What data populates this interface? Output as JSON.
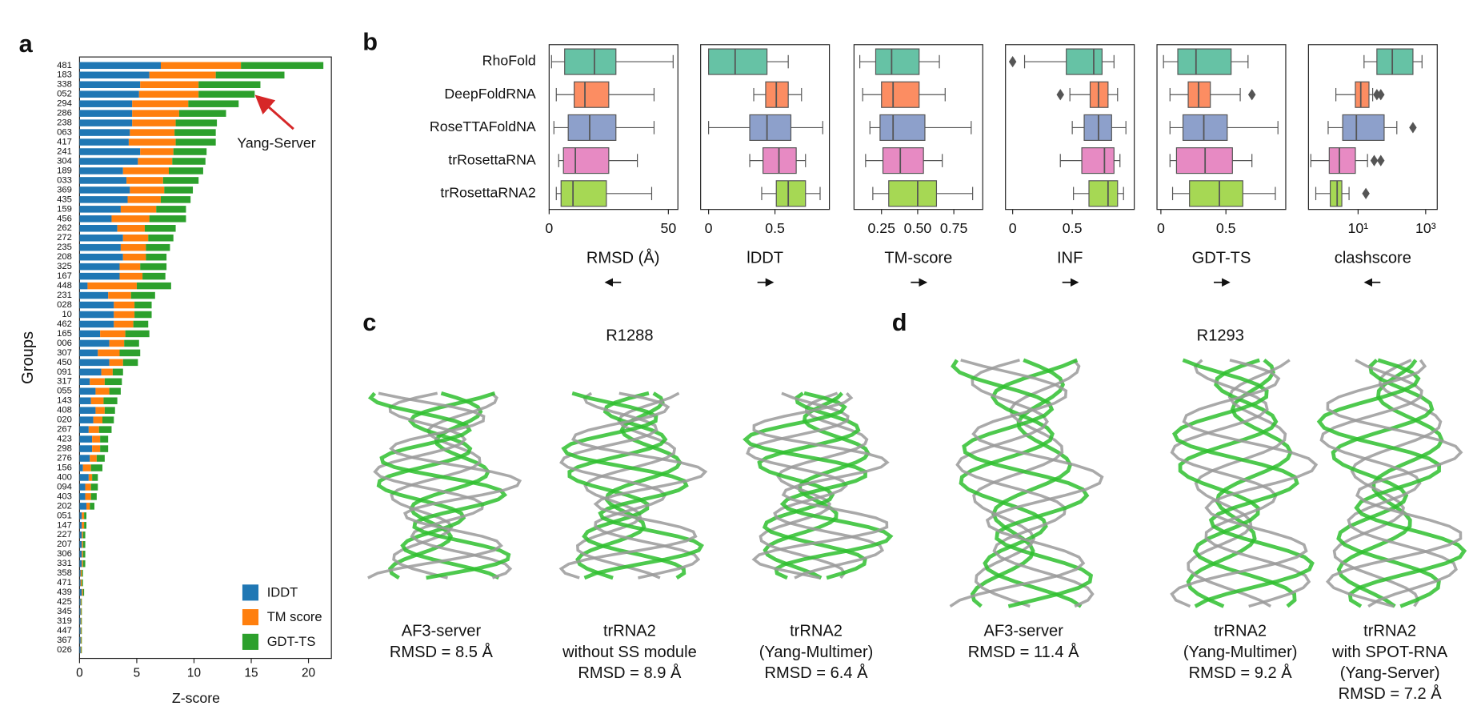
{
  "chart_data": [
    {
      "type": "stacked-barh",
      "panel_label": "a",
      "ylabel": "Groups",
      "xlabel": "Z-score",
      "categories": [
        "481",
        "183",
        "338",
        "052",
        "294",
        "286",
        "238",
        "063",
        "417",
        "241",
        "304",
        "189",
        "033",
        "369",
        "435",
        "159",
        "456",
        "262",
        "272",
        "235",
        "208",
        "325",
        "167",
        "448",
        "231",
        "028",
        "10",
        "462",
        "165",
        "006",
        "307",
        "450",
        "091",
        "317",
        "055",
        "143",
        "408",
        "020",
        "267",
        "423",
        "298",
        "276",
        "156",
        "400",
        "094",
        "403",
        "202",
        "051",
        "147",
        "227",
        "207",
        "306",
        "331",
        "358",
        "471",
        "439",
        "425",
        "345",
        "319",
        "447",
        "367",
        "026"
      ],
      "label_colors": [
        "#222",
        "#222",
        "#222",
        "#d62728",
        "#222",
        "#222",
        "#222",
        "#222",
        "#222",
        "#222",
        "#d62728",
        "#222",
        "#222",
        "#222",
        "#222",
        "#222",
        "#d62728",
        "#222",
        "#222",
        "#222",
        "#d62728",
        "#222",
        "#222",
        "#222",
        "#222",
        "#d62728",
        "#d62728",
        "#222",
        "#222",
        "#222",
        "#222",
        "#d62728",
        "#222",
        "#222",
        "#222",
        "#222",
        "#222",
        "#222",
        "#d62728",
        "#d62728",
        "#222",
        "#222",
        "#222",
        "#222",
        "#d62728",
        "#222",
        "#222",
        "#222",
        "#d62728",
        "#222",
        "#222",
        "#d62728",
        "#d62728",
        "#222",
        "#d62728",
        "#222",
        "#d62728",
        "#222",
        "#d62728",
        "#222",
        "#222",
        "#222"
      ],
      "series": [
        {
          "name": "IDDT",
          "color": "#1f77b4",
          "values": [
            7.1,
            6.1,
            5.3,
            5.2,
            4.6,
            4.6,
            4.6,
            4.4,
            4.3,
            5.3,
            5.1,
            3.8,
            4.1,
            4.4,
            4.2,
            3.6,
            2.8,
            3.3,
            3.8,
            3.6,
            3.8,
            3.5,
            3.5,
            0.7,
            2.5,
            3.0,
            3.0,
            3.0,
            1.8,
            2.6,
            1.6,
            2.6,
            1.9,
            0.9,
            1.4,
            1.0,
            1.4,
            1.2,
            0.8,
            1.1,
            1.1,
            0.9,
            0.3,
            0.8,
            0.5,
            0.5,
            0.6,
            0.2,
            0.2,
            0.2,
            0.2,
            0.2,
            0.2,
            0.1,
            0.1,
            0.2,
            0.1,
            0.1,
            0.1,
            0.1,
            0.1,
            0.1
          ]
        },
        {
          "name": "TM score",
          "color": "#ff7f0e",
          "values": [
            7.0,
            5.8,
            5.1,
            5.2,
            4.9,
            4.1,
            3.8,
            3.9,
            4.1,
            2.9,
            3.0,
            4.0,
            3.2,
            3.0,
            2.9,
            3.1,
            3.3,
            2.4,
            2.2,
            2.2,
            2.0,
            1.8,
            2.0,
            4.3,
            2.0,
            1.8,
            1.8,
            1.7,
            2.2,
            1.3,
            1.9,
            1.2,
            1.0,
            1.3,
            1.2,
            1.1,
            0.8,
            0.8,
            0.9,
            0.7,
            0.7,
            0.6,
            0.7,
            0.3,
            0.5,
            0.5,
            0.3,
            0.2,
            0.2,
            0.1,
            0.1,
            0.1,
            0.1,
            0.1,
            0.1,
            0.1,
            0.05,
            0.05,
            0.05,
            0.05,
            0.05,
            0.05
          ]
        },
        {
          "name": "GDT-TS",
          "color": "#2ca02c",
          "values": [
            7.2,
            6.0,
            5.4,
            4.9,
            4.4,
            4.1,
            3.6,
            3.6,
            3.5,
            2.9,
            2.9,
            3.0,
            3.1,
            2.5,
            2.6,
            2.6,
            3.2,
            2.7,
            2.2,
            2.1,
            1.8,
            2.3,
            2.0,
            3.0,
            2.1,
            1.5,
            1.5,
            1.3,
            2.1,
            1.3,
            1.8,
            1.3,
            0.9,
            1.5,
            1.0,
            1.2,
            0.9,
            1.0,
            1.1,
            0.7,
            0.7,
            0.7,
            1.0,
            0.5,
            0.6,
            0.5,
            0.4,
            0.2,
            0.2,
            0.2,
            0.2,
            0.2,
            0.2,
            0.1,
            0.1,
            0.1,
            0.05,
            0.05,
            0.05,
            0.05,
            0.05,
            0.05
          ]
        }
      ],
      "xlim": [
        0,
        22
      ],
      "xticks": [
        0,
        5,
        10,
        15,
        20
      ],
      "legend": "lower right",
      "annotation": {
        "text": "Yang-Server",
        "category": 3
      }
    },
    {
      "type": "box",
      "panel_label": "b",
      "categories": [
        "RhoFold",
        "DeepFoldRNA",
        "RoseTTAFoldNA",
        "trRosettaRNA",
        "trRosettaRNA2"
      ],
      "colors": [
        "#66c2a5",
        "#fc8d62",
        "#8da0cb",
        "#e78ac3",
        "#a6d854"
      ],
      "panels": [
        {
          "xlabel": "RMSD (Å)",
          "xlim": [
            0,
            54
          ],
          "xticks": [
            0,
            50
          ],
          "arrow": "left",
          "log": false,
          "boxes": [
            {
              "whislo": 1,
              "q1": 6.5,
              "med": 19,
              "q3": 28,
              "whishi": 52,
              "fliers": []
            },
            {
              "whislo": 3,
              "q1": 10.5,
              "med": 15,
              "q3": 25,
              "whishi": 44,
              "fliers": []
            },
            {
              "whislo": 2,
              "q1": 8,
              "med": 17,
              "q3": 28,
              "whishi": 44,
              "fliers": []
            },
            {
              "whislo": 4,
              "q1": 6,
              "med": 11,
              "q3": 25,
              "whishi": 37,
              "fliers": []
            },
            {
              "whislo": 3,
              "q1": 5,
              "med": 10,
              "q3": 24,
              "whishi": 43,
              "fliers": []
            }
          ]
        },
        {
          "xlabel": "lDDT",
          "xlim": [
            -0.06,
            0.91
          ],
          "xticks": [
            0,
            0.5
          ],
          "arrow": "right",
          "log": false,
          "boxes": [
            {
              "whislo": 0,
              "q1": 0,
              "med": 0.2,
              "q3": 0.44,
              "whishi": 0.6,
              "fliers": []
            },
            {
              "whislo": 0.34,
              "q1": 0.43,
              "med": 0.51,
              "q3": 0.6,
              "whishi": 0.7,
              "fliers": []
            },
            {
              "whislo": 0,
              "q1": 0.31,
              "med": 0.44,
              "q3": 0.62,
              "whishi": 0.86,
              "fliers": []
            },
            {
              "whislo": 0.31,
              "q1": 0.41,
              "med": 0.53,
              "q3": 0.66,
              "whishi": 0.73,
              "fliers": []
            },
            {
              "whislo": 0.4,
              "q1": 0.51,
              "med": 0.6,
              "q3": 0.73,
              "whishi": 0.84,
              "fliers": []
            }
          ]
        },
        {
          "xlabel": "TM-score",
          "xlim": [
            0.06,
            0.95
          ],
          "xticks": [
            0.25,
            {
              "value": 0.5,
              "label": "0.50"
            },
            0.75
          ],
          "arrow": "right",
          "log": false,
          "boxes": [
            {
              "whislo": 0.1,
              "q1": 0.21,
              "med": 0.32,
              "q3": 0.51,
              "whishi": 0.65,
              "fliers": []
            },
            {
              "whislo": 0.12,
              "q1": 0.25,
              "med": 0.33,
              "q3": 0.51,
              "whishi": 0.69,
              "fliers": []
            },
            {
              "whislo": 0.17,
              "q1": 0.24,
              "med": 0.33,
              "q3": 0.55,
              "whishi": 0.87,
              "fliers": []
            },
            {
              "whislo": 0.14,
              "q1": 0.26,
              "med": 0.38,
              "q3": 0.54,
              "whishi": 0.67,
              "fliers": []
            },
            {
              "whislo": 0.19,
              "q1": 0.3,
              "med": 0.5,
              "q3": 0.63,
              "whishi": 0.88,
              "fliers": []
            }
          ]
        },
        {
          "xlabel": "INF",
          "xlim": [
            -0.06,
            1.02
          ],
          "xticks": [
            0,
            0.5
          ],
          "arrow": "right",
          "log": false,
          "boxes": [
            {
              "whislo": 0.1,
              "q1": 0.45,
              "med": 0.68,
              "q3": 0.75,
              "whishi": 0.85,
              "fliers": [
                0
              ]
            },
            {
              "whislo": 0.48,
              "q1": 0.65,
              "med": 0.72,
              "q3": 0.8,
              "whishi": 0.88,
              "fliers": [
                0.4
              ]
            },
            {
              "whislo": 0.5,
              "q1": 0.6,
              "med": 0.72,
              "q3": 0.83,
              "whishi": 0.95,
              "fliers": []
            },
            {
              "whislo": 0.4,
              "q1": 0.58,
              "med": 0.77,
              "q3": 0.85,
              "whishi": 0.9,
              "fliers": []
            },
            {
              "whislo": 0.51,
              "q1": 0.64,
              "med": 0.8,
              "q3": 0.88,
              "whishi": 0.93,
              "fliers": []
            }
          ]
        },
        {
          "xlabel": "GDT-TS",
          "xlim": [
            -0.03,
            0.96
          ],
          "xticks": [
            0,
            0.5
          ],
          "arrow": "right",
          "log": false,
          "boxes": [
            {
              "whislo": 0.02,
              "q1": 0.13,
              "med": 0.27,
              "q3": 0.54,
              "whishi": 0.67,
              "fliers": []
            },
            {
              "whislo": 0.07,
              "q1": 0.21,
              "med": 0.29,
              "q3": 0.38,
              "whishi": 0.61,
              "fliers": [
                0.7
              ]
            },
            {
              "whislo": 0.07,
              "q1": 0.17,
              "med": 0.33,
              "q3": 0.51,
              "whishi": 0.9,
              "fliers": []
            },
            {
              "whislo": 0.07,
              "q1": 0.12,
              "med": 0.34,
              "q3": 0.55,
              "whishi": 0.7,
              "fliers": []
            },
            {
              "whislo": 0.09,
              "q1": 0.22,
              "med": 0.45,
              "q3": 0.63,
              "whishi": 0.88,
              "fliers": []
            }
          ]
        },
        {
          "xlabel": "clashscore",
          "xlim": [
            0.34,
            2200
          ],
          "xticks": [
            {
              "value": 10,
              "label": "10¹"
            },
            {
              "value": 1000,
              "label": "10³"
            }
          ],
          "arrow": "left",
          "log": true,
          "boxes": [
            {
              "whislo": 15,
              "q1": 36,
              "med": 103,
              "q3": 420,
              "whishi": 780,
              "fliers": []
            },
            {
              "whislo": 2.2,
              "q1": 8.3,
              "med": 12,
              "q3": 21,
              "whishi": 27,
              "fliers": [
                36,
                47
              ]
            },
            {
              "whislo": 1.3,
              "q1": 3.5,
              "med": 8.9,
              "q3": 59,
              "whishi": 140,
              "fliers": [
                420
              ]
            },
            {
              "whislo": 0.4,
              "q1": 1.4,
              "med": 2.8,
              "q3": 8.3,
              "whishi": 19,
              "fliers": [
                30,
                47
              ]
            },
            {
              "whislo": 0.56,
              "q1": 1.5,
              "med": 2.4,
              "q3": 3.3,
              "whishi": 5.4,
              "fliers": [
                17
              ]
            }
          ]
        }
      ]
    }
  ],
  "structures": [
    {
      "panel_label": "c",
      "title": "R1288",
      "items": [
        {
          "lines": [
            "AF3-server",
            "RMSD = 8.5 Å"
          ]
        },
        {
          "lines": [
            "trRNA2",
            "without SS module",
            "RMSD = 8.9 Å"
          ]
        },
        {
          "lines": [
            "trRNA2",
            "(Yang-Multimer)",
            "RMSD = 6.4 Å"
          ]
        }
      ]
    },
    {
      "panel_label": "d",
      "title": "R1293",
      "items": [
        {
          "lines": [
            "AF3-server",
            "RMSD = 11.4 Å"
          ]
        },
        {
          "lines": [
            "trRNA2",
            "(Yang-Multimer)",
            "RMSD = 9.2 Å"
          ]
        },
        {
          "lines": [
            "trRNA2",
            "with SPOT-RNA",
            "(Yang-Server)",
            "RMSD = 7.2 Å"
          ]
        }
      ]
    }
  ]
}
